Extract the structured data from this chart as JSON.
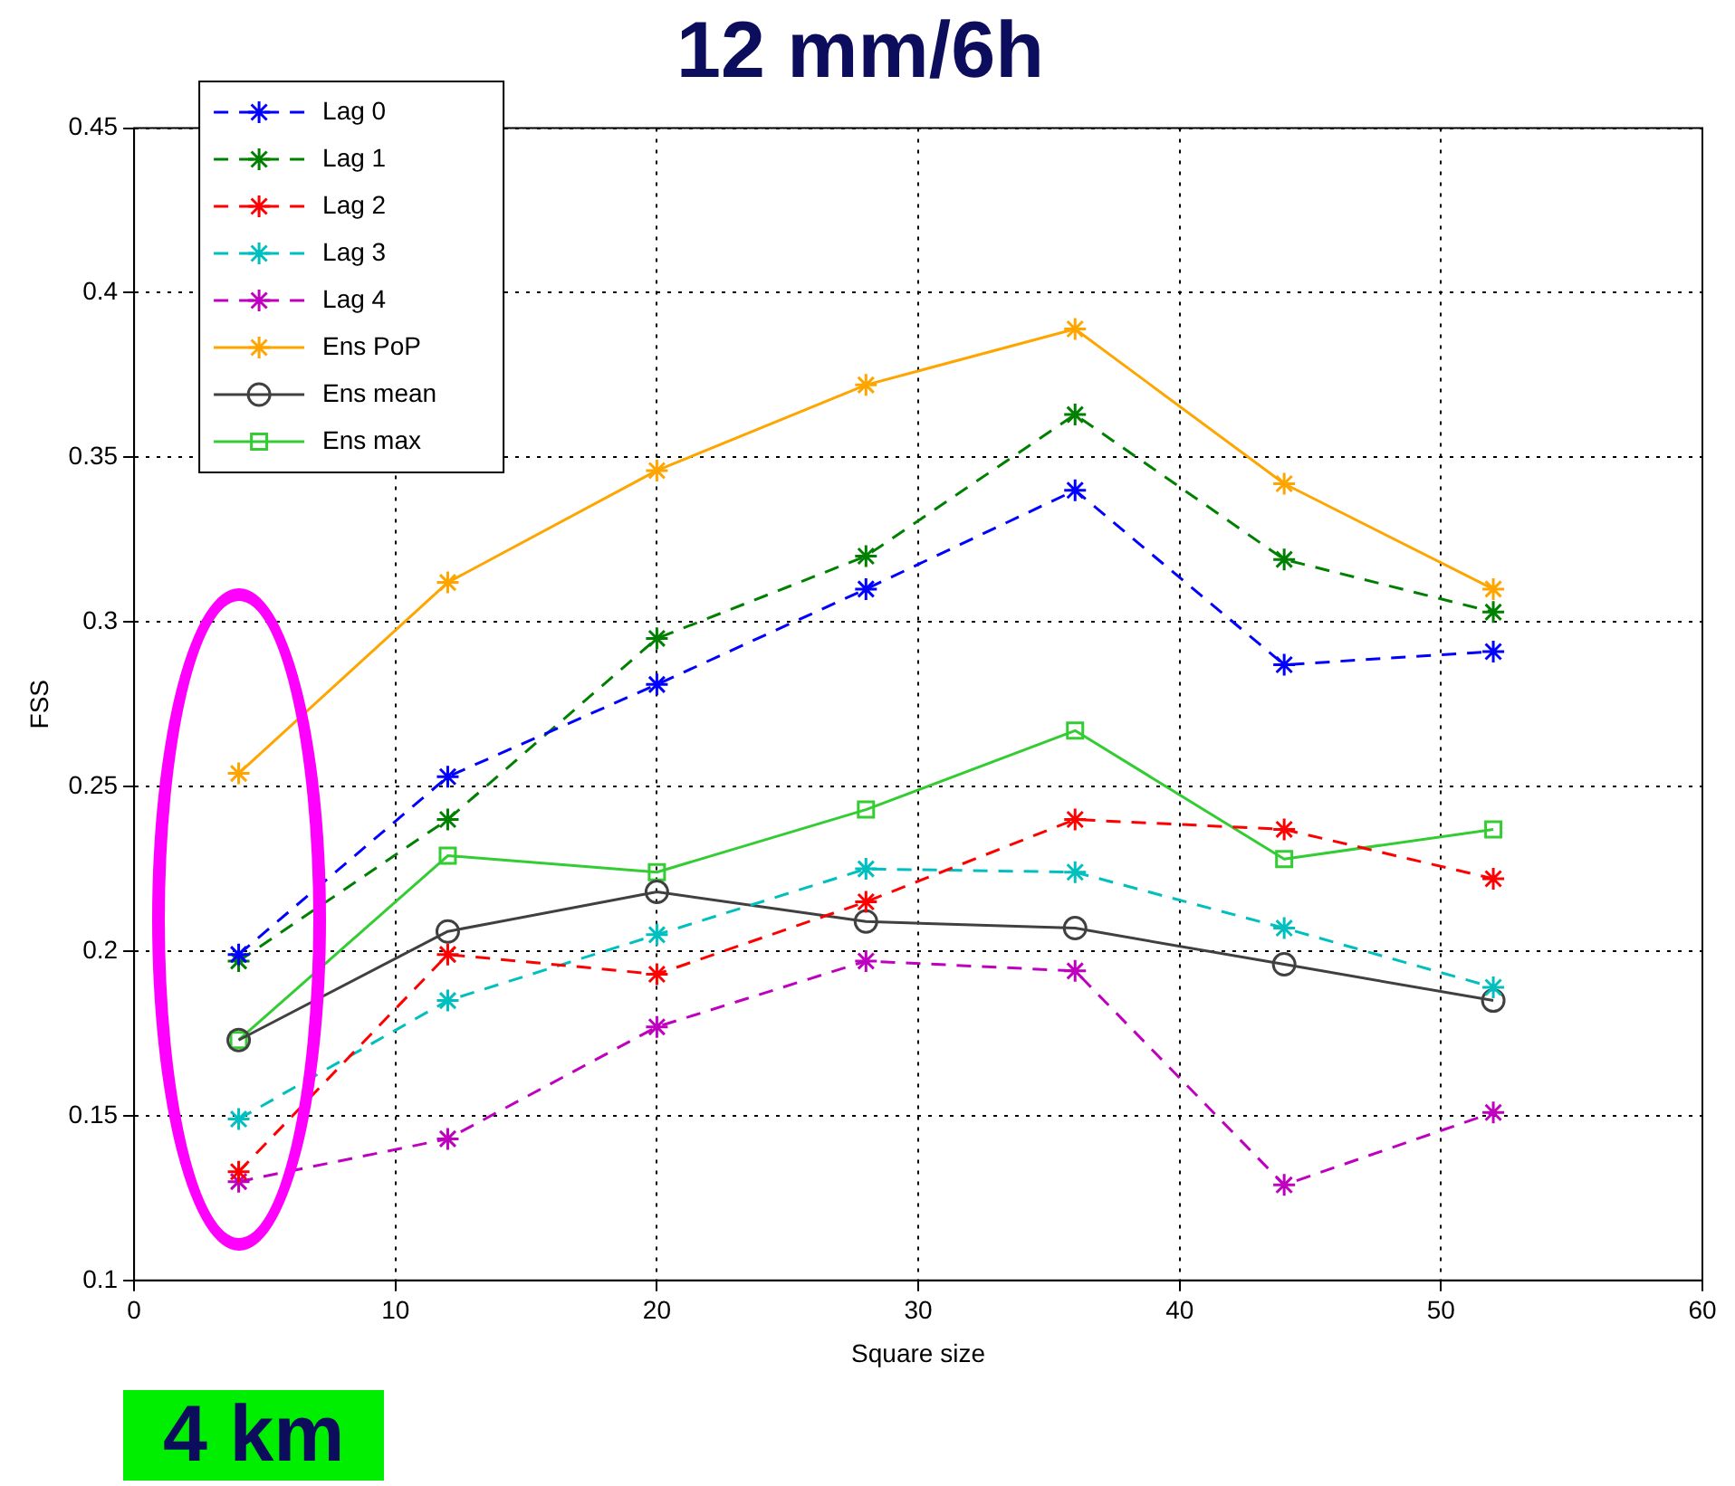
{
  "chart_data": {
    "type": "line",
    "title": "12 mm/6h",
    "xlabel": "Square size",
    "ylabel": "FSS",
    "x": [
      4,
      12,
      20,
      28,
      36,
      44,
      52
    ],
    "xlim": [
      0,
      60
    ],
    "xticks": [
      0,
      10,
      20,
      30,
      40,
      50,
      60
    ],
    "ylim": [
      0.1,
      0.45
    ],
    "yticks": [
      0.1,
      0.15,
      0.2,
      0.25,
      0.3,
      0.35,
      0.4,
      0.45
    ],
    "grid": true,
    "legend": "top left",
    "annotations": [
      "4 km"
    ],
    "series": [
      {
        "name": "Lag 0",
        "color": "#0000ff",
        "marker": "cross",
        "line_style": "dashed",
        "values": [
          0.199,
          0.253,
          0.281,
          0.31,
          0.34,
          0.287,
          0.291
        ]
      },
      {
        "name": "Lag 1",
        "color": "#008000",
        "marker": "cross",
        "line_style": "dashed",
        "values": [
          0.197,
          0.24,
          0.295,
          0.32,
          0.363,
          0.319,
          0.303
        ]
      },
      {
        "name": "Lag 2",
        "color": "#ff0000",
        "marker": "cross",
        "line_style": "dashed",
        "values": [
          0.133,
          0.199,
          0.193,
          0.215,
          0.24,
          0.237,
          0.222
        ]
      },
      {
        "name": "Lag 3",
        "color": "#00bfbf",
        "marker": "cross",
        "line_style": "dashed",
        "values": [
          0.149,
          0.185,
          0.205,
          0.225,
          0.224,
          0.207,
          0.189
        ]
      },
      {
        "name": "Lag 4",
        "color": "#bf00bf",
        "marker": "cross",
        "line_style": "dashed",
        "values": [
          0.13,
          0.143,
          0.177,
          0.197,
          0.194,
          0.129,
          0.151
        ]
      },
      {
        "name": "Ens PoP",
        "color": "#ffa500",
        "marker": "cross",
        "line_style": "solid",
        "values": [
          0.254,
          0.312,
          0.346,
          0.372,
          0.389,
          0.342,
          0.31
        ]
      },
      {
        "name": "Ens mean",
        "color": "#404040",
        "marker": "circle",
        "line_style": "solid",
        "values": [
          0.173,
          0.206,
          0.218,
          0.209,
          0.207,
          0.196,
          0.185
        ]
      },
      {
        "name": "Ens max",
        "color": "#33cc33",
        "marker": "square",
        "line_style": "solid",
        "values": [
          0.173,
          0.229,
          0.224,
          0.243,
          0.267,
          0.228,
          0.237
        ]
      }
    ]
  }
}
